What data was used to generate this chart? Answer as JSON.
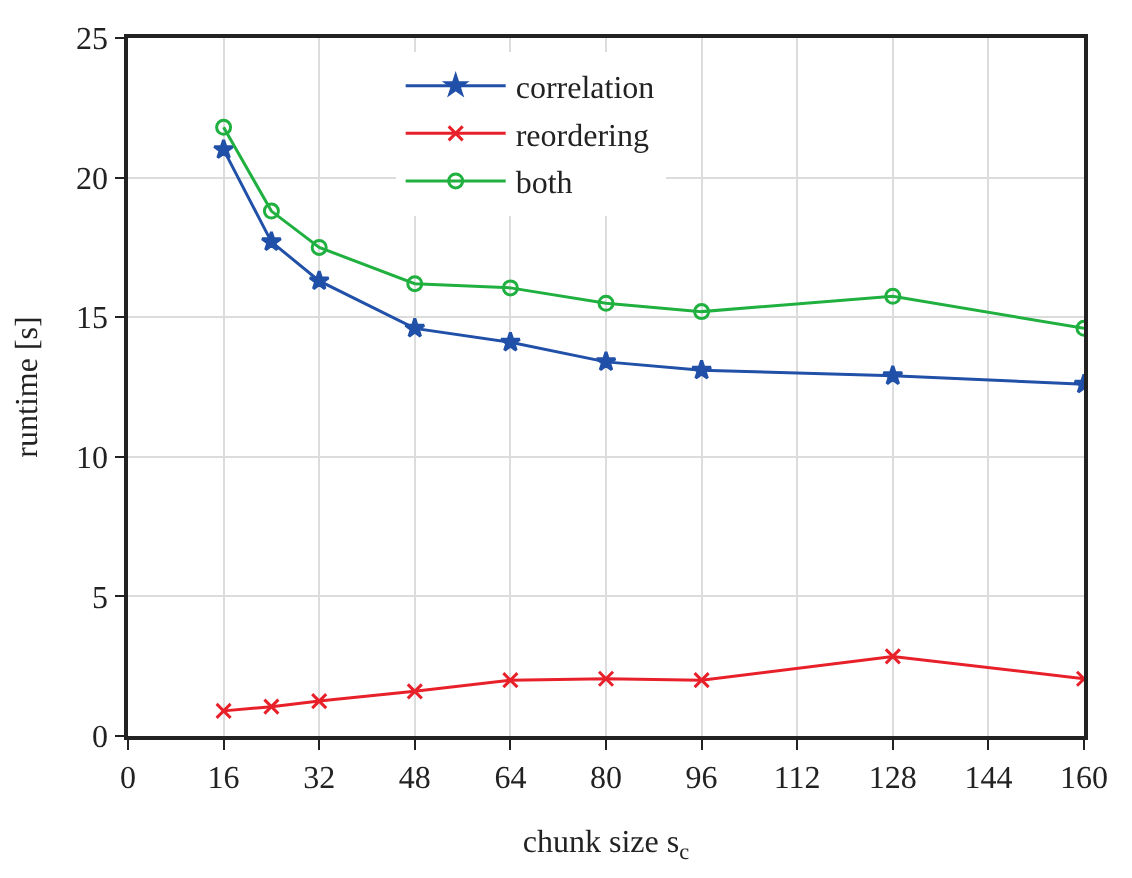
{
  "chart_data": {
    "type": "line",
    "xlabel": "chunk size s$_{c}$",
    "ylabel": "runtime [s]",
    "x": [
      16,
      24,
      32,
      48,
      64,
      80,
      96,
      128,
      160
    ],
    "series": [
      {
        "name": "correlation",
        "color": "#2050a8",
        "marker": "star",
        "values": [
          21.0,
          17.7,
          16.3,
          14.6,
          14.1,
          13.4,
          13.1,
          12.9,
          12.6
        ]
      },
      {
        "name": "reordering",
        "color": "#e8202a",
        "marker": "cross",
        "values": [
          0.9,
          1.05,
          1.25,
          1.6,
          2.0,
          2.05,
          2.0,
          2.85,
          2.05
        ]
      },
      {
        "name": "both",
        "color": "#20b040",
        "marker": "circle",
        "values": [
          21.8,
          18.8,
          17.5,
          16.2,
          16.05,
          15.5,
          15.2,
          15.75,
          14.6
        ]
      }
    ],
    "xlim": [
      0,
      160
    ],
    "xticks": [
      0,
      16,
      32,
      48,
      64,
      80,
      96,
      112,
      128,
      144,
      160
    ],
    "ylim": [
      0,
      25
    ],
    "yticks": [
      0,
      5,
      10,
      15,
      20,
      25
    ],
    "grid": true,
    "legend": "top",
    "line_style": "solid"
  }
}
